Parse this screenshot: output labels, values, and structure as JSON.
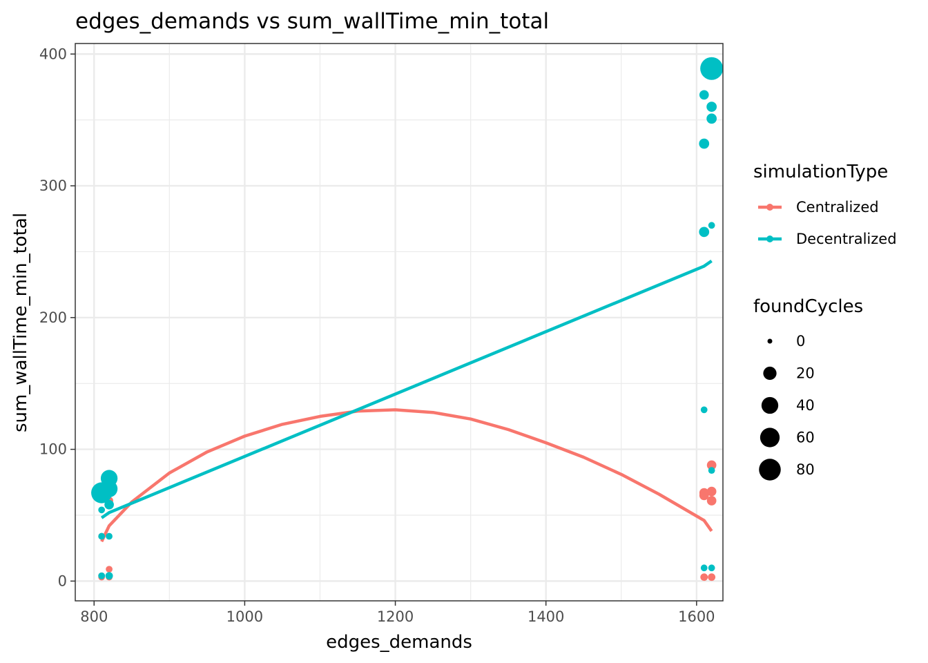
{
  "chart_data": {
    "type": "scatter",
    "title": "edges_demands  vs  sum_wallTime_min_total",
    "xlabel": "edges_demands",
    "ylabel": "sum_wallTime_min_total",
    "xlim": [
      775,
      1635
    ],
    "ylim": [
      -15,
      408
    ],
    "x_ticks": [
      800,
      1000,
      1200,
      1400,
      1600
    ],
    "y_ticks": [
      0,
      100,
      200,
      300,
      400
    ],
    "x_minor": [
      900,
      1100,
      1300,
      1500
    ],
    "y_minor": [
      50,
      150,
      250,
      350
    ],
    "grid": true,
    "colors": {
      "Centralized": "#F8766D",
      "Decentralized": "#00BFC4"
    },
    "legend": {
      "position": "right",
      "color_title": "simulationType",
      "color_entries": [
        "Centralized",
        "Decentralized"
      ],
      "size_title": "foundCycles",
      "size_entries": [
        {
          "label": "0",
          "value": 0
        },
        {
          "label": "20",
          "value": 20
        },
        {
          "label": "40",
          "value": 40
        },
        {
          "label": "60",
          "value": 60
        },
        {
          "label": "80",
          "value": 80
        }
      ]
    },
    "size_range": [
      0,
      90
    ],
    "series": [
      {
        "name": "Centralized",
        "points": [
          {
            "x": 810,
            "y": 3,
            "size": 1
          },
          {
            "x": 820,
            "y": 3,
            "size": 1
          },
          {
            "x": 810,
            "y": 4,
            "size": 1
          },
          {
            "x": 820,
            "y": 9,
            "size": 1
          },
          {
            "x": 810,
            "y": 34,
            "size": 1
          },
          {
            "x": 820,
            "y": 61,
            "size": 3
          },
          {
            "x": 810,
            "y": 66,
            "size": 4
          },
          {
            "x": 1610,
            "y": 3,
            "size": 2
          },
          {
            "x": 1620,
            "y": 3,
            "size": 2
          },
          {
            "x": 1620,
            "y": 61,
            "size": 6
          },
          {
            "x": 1610,
            "y": 65,
            "size": 6
          },
          {
            "x": 1610,
            "y": 67,
            "size": 6
          },
          {
            "x": 1620,
            "y": 68,
            "size": 6
          },
          {
            "x": 1620,
            "y": 88,
            "size": 6
          }
        ],
        "trend": [
          {
            "x": 810,
            "y": 30
          },
          {
            "x": 820,
            "y": 42
          },
          {
            "x": 850,
            "y": 60
          },
          {
            "x": 900,
            "y": 82
          },
          {
            "x": 950,
            "y": 98
          },
          {
            "x": 1000,
            "y": 110
          },
          {
            "x": 1050,
            "y": 119
          },
          {
            "x": 1100,
            "y": 125
          },
          {
            "x": 1150,
            "y": 129
          },
          {
            "x": 1200,
            "y": 130
          },
          {
            "x": 1250,
            "y": 128
          },
          {
            "x": 1300,
            "y": 123
          },
          {
            "x": 1350,
            "y": 115
          },
          {
            "x": 1400,
            "y": 105
          },
          {
            "x": 1450,
            "y": 94
          },
          {
            "x": 1500,
            "y": 81
          },
          {
            "x": 1550,
            "y": 66
          },
          {
            "x": 1610,
            "y": 46
          },
          {
            "x": 1620,
            "y": 38
          }
        ]
      },
      {
        "name": "Decentralized",
        "points": [
          {
            "x": 810,
            "y": 4,
            "size": 1
          },
          {
            "x": 820,
            "y": 4,
            "size": 2
          },
          {
            "x": 810,
            "y": 34,
            "size": 1
          },
          {
            "x": 820,
            "y": 34,
            "size": 1
          },
          {
            "x": 810,
            "y": 54,
            "size": 1
          },
          {
            "x": 820,
            "y": 58,
            "size": 6
          },
          {
            "x": 810,
            "y": 67,
            "size": 72
          },
          {
            "x": 820,
            "y": 70,
            "size": 40
          },
          {
            "x": 820,
            "y": 78,
            "size": 40
          },
          {
            "x": 1610,
            "y": 10,
            "size": 1
          },
          {
            "x": 1620,
            "y": 10,
            "size": 1
          },
          {
            "x": 1620,
            "y": 84,
            "size": 1
          },
          {
            "x": 1610,
            "y": 130,
            "size": 1
          },
          {
            "x": 1610,
            "y": 265,
            "size": 8
          },
          {
            "x": 1620,
            "y": 270,
            "size": 1
          },
          {
            "x": 1610,
            "y": 332,
            "size": 8
          },
          {
            "x": 1620,
            "y": 351,
            "size": 8
          },
          {
            "x": 1620,
            "y": 360,
            "size": 8
          },
          {
            "x": 1610,
            "y": 369,
            "size": 6
          },
          {
            "x": 1620,
            "y": 389,
            "size": 90
          }
        ],
        "trend": [
          {
            "x": 810,
            "y": 48
          },
          {
            "x": 820,
            "y": 52
          },
          {
            "x": 1610,
            "y": 239
          },
          {
            "x": 1620,
            "y": 243
          }
        ]
      }
    ]
  }
}
